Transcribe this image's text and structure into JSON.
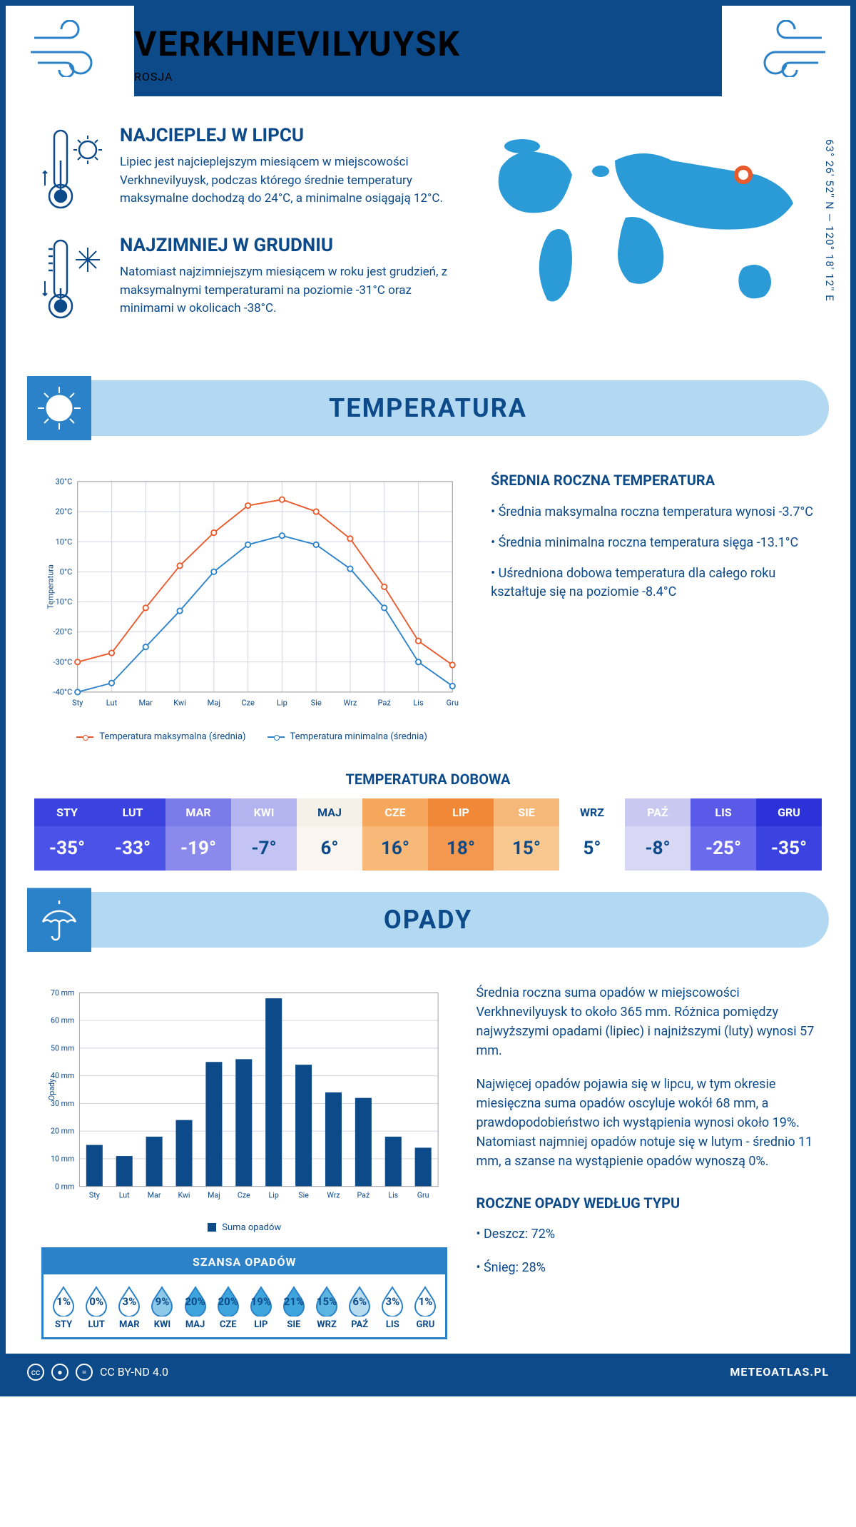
{
  "header": {
    "city": "VERKHNEVILYUYSK",
    "country": "ROSJA"
  },
  "coords": "63° 26' 52'' N — 120° 18' 12'' E",
  "intro": {
    "warm": {
      "title": "NAJCIEPLEJ W LIPCU",
      "text": "Lipiec jest najcieplejszym miesiącem w miejscowości Verkhnevilyuysk, podczas którego średnie temperatury maksymalne dochodzą do 24°C, a minimalne osiągają 12°C."
    },
    "cold": {
      "title": "NAJZIMNIEJ W GRUDNIU",
      "text": "Natomiast najzimniejszym miesiącem w roku jest grudzień, z maksymalnymi temperaturami na poziomie -31°C oraz minimami w okolicach -38°C."
    }
  },
  "temp_section": {
    "heading": "TEMPERATURA",
    "chart": {
      "type": "line",
      "months": [
        "Sty",
        "Lut",
        "Mar",
        "Kwi",
        "Maj",
        "Cze",
        "Lip",
        "Sie",
        "Wrz",
        "Paź",
        "Lis",
        "Gru"
      ],
      "y_label": "Temperatura",
      "ylim": [
        -40,
        30
      ],
      "ytick_step": 10,
      "y_suffix": "°C",
      "grid_color": "#d0d0e0",
      "series": [
        {
          "name": "Temperatura maksymalna (średnia)",
          "color": "#e8592b",
          "values": [
            -30,
            -27,
            -12,
            2,
            13,
            22,
            24,
            20,
            11,
            -5,
            -23,
            -31
          ]
        },
        {
          "name": "Temperatura minimalna (średnia)",
          "color": "#2b82c9",
          "values": [
            -40,
            -37,
            -25,
            -13,
            0,
            9,
            12,
            9,
            1,
            -12,
            -30,
            -38
          ]
        }
      ]
    },
    "info": {
      "title": "ŚREDNIA ROCZNA TEMPERATURA",
      "bullets": [
        "Średnia maksymalna roczna temperatura wynosi -3.7°C",
        "Średnia minimalna roczna temperatura sięga -13.1°C",
        "Uśredniona dobowa temperatura dla całego roku kształtuje się na poziomie -8.4°C"
      ]
    }
  },
  "daily": {
    "title": "TEMPERATURA DOBOWA",
    "months": [
      "STY",
      "LUT",
      "MAR",
      "KWI",
      "MAJ",
      "CZE",
      "LIP",
      "SIE",
      "WRZ",
      "PAŹ",
      "LIS",
      "GRU"
    ],
    "values": [
      "-35°",
      "-33°",
      "-19°",
      "-7°",
      "6°",
      "16°",
      "18°",
      "15°",
      "5°",
      "-8°",
      "-25°",
      "-35°"
    ],
    "head_colors": [
      "#3a42e0",
      "#3a42e0",
      "#7a7ae8",
      "#b3b3f0",
      "#f5f0e8",
      "#f5a85c",
      "#f08838",
      "#f5b878",
      "#ffffff",
      "#c8c8f0",
      "#5a5ae8",
      "#2a32d8"
    ],
    "val_colors": [
      "#4a52e8",
      "#4a52e8",
      "#8a8aec",
      "#c3c3f4",
      "#faf5f0",
      "#f8b878",
      "#f49850",
      "#f8c890",
      "#ffffff",
      "#d8d8f4",
      "#6a6aec",
      "#3a42e0"
    ],
    "text_colors": [
      "#fff",
      "#fff",
      "#fff",
      "#fff",
      "#0c4a8a",
      "#fff",
      "#fff",
      "#fff",
      "#0c4a8a",
      "#fff",
      "#fff",
      "#fff"
    ],
    "val_text_colors": [
      "#fff",
      "#fff",
      "#fff",
      "#0c4a8a",
      "#0c4a8a",
      "#0c4a8a",
      "#0c4a8a",
      "#0c4a8a",
      "#0c4a8a",
      "#0c4a8a",
      "#fff",
      "#fff"
    ]
  },
  "precip_section": {
    "heading": "OPADY",
    "chart": {
      "type": "bar",
      "months": [
        "Sty",
        "Lut",
        "Mar",
        "Kwi",
        "Maj",
        "Cze",
        "Lip",
        "Sie",
        "Wrz",
        "Paź",
        "Lis",
        "Gru"
      ],
      "values": [
        15,
        11,
        18,
        24,
        45,
        46,
        68,
        44,
        34,
        32,
        18,
        14
      ],
      "y_label": "Opady",
      "ylim": [
        0,
        70
      ],
      "ytick_step": 10,
      "y_suffix": " mm",
      "bar_color": "#0c4a8a",
      "legend": "Suma opadów",
      "grid_color": "#d0d0e0"
    },
    "para1": "Średnia roczna suma opadów w miejscowości Verkhnevilyuysk to około 365 mm. Różnica pomiędzy najwyższymi opadami (lipiec) i najniższymi (luty) wynosi 57 mm.",
    "para2": "Najwięcej opadów pojawia się w lipcu, w tym okresie miesięczna suma opadów oscyluje wokół 68 mm, a prawdopodobieństwo ich wystąpienia wynosi około 19%. Natomiast najmniej opadów notuje się w lutym - średnio 11 mm, a szanse na wystąpienie opadów wynoszą 0%.",
    "types_title": "ROCZNE OPADY WEDŁUG TYPU",
    "types": [
      "Deszcz: 72%",
      "Śnieg: 28%"
    ]
  },
  "chance": {
    "title": "SZANSA OPADÓW",
    "months": [
      "STY",
      "LUT",
      "MAR",
      "KWI",
      "MAJ",
      "CZE",
      "LIP",
      "SIE",
      "WRZ",
      "PAŹ",
      "LIS",
      "GRU"
    ],
    "values": [
      "1%",
      "0%",
      "3%",
      "9%",
      "20%",
      "20%",
      "19%",
      "21%",
      "15%",
      "6%",
      "3%",
      "1%"
    ],
    "fills": [
      "#ffffff",
      "#ffffff",
      "#ffffff",
      "#8cc9e8",
      "#3ea5dc",
      "#3ea5dc",
      "#3ea5dc",
      "#3ea5dc",
      "#5cb5e0",
      "#b8dcee",
      "#ffffff",
      "#ffffff"
    ]
  },
  "footer": {
    "license": "CC BY-ND 4.0",
    "site": "METEOATLAS.PL"
  },
  "colors": {
    "primary": "#0c4a8a",
    "light": "#b3d9f2",
    "accent": "#2b82c9"
  }
}
